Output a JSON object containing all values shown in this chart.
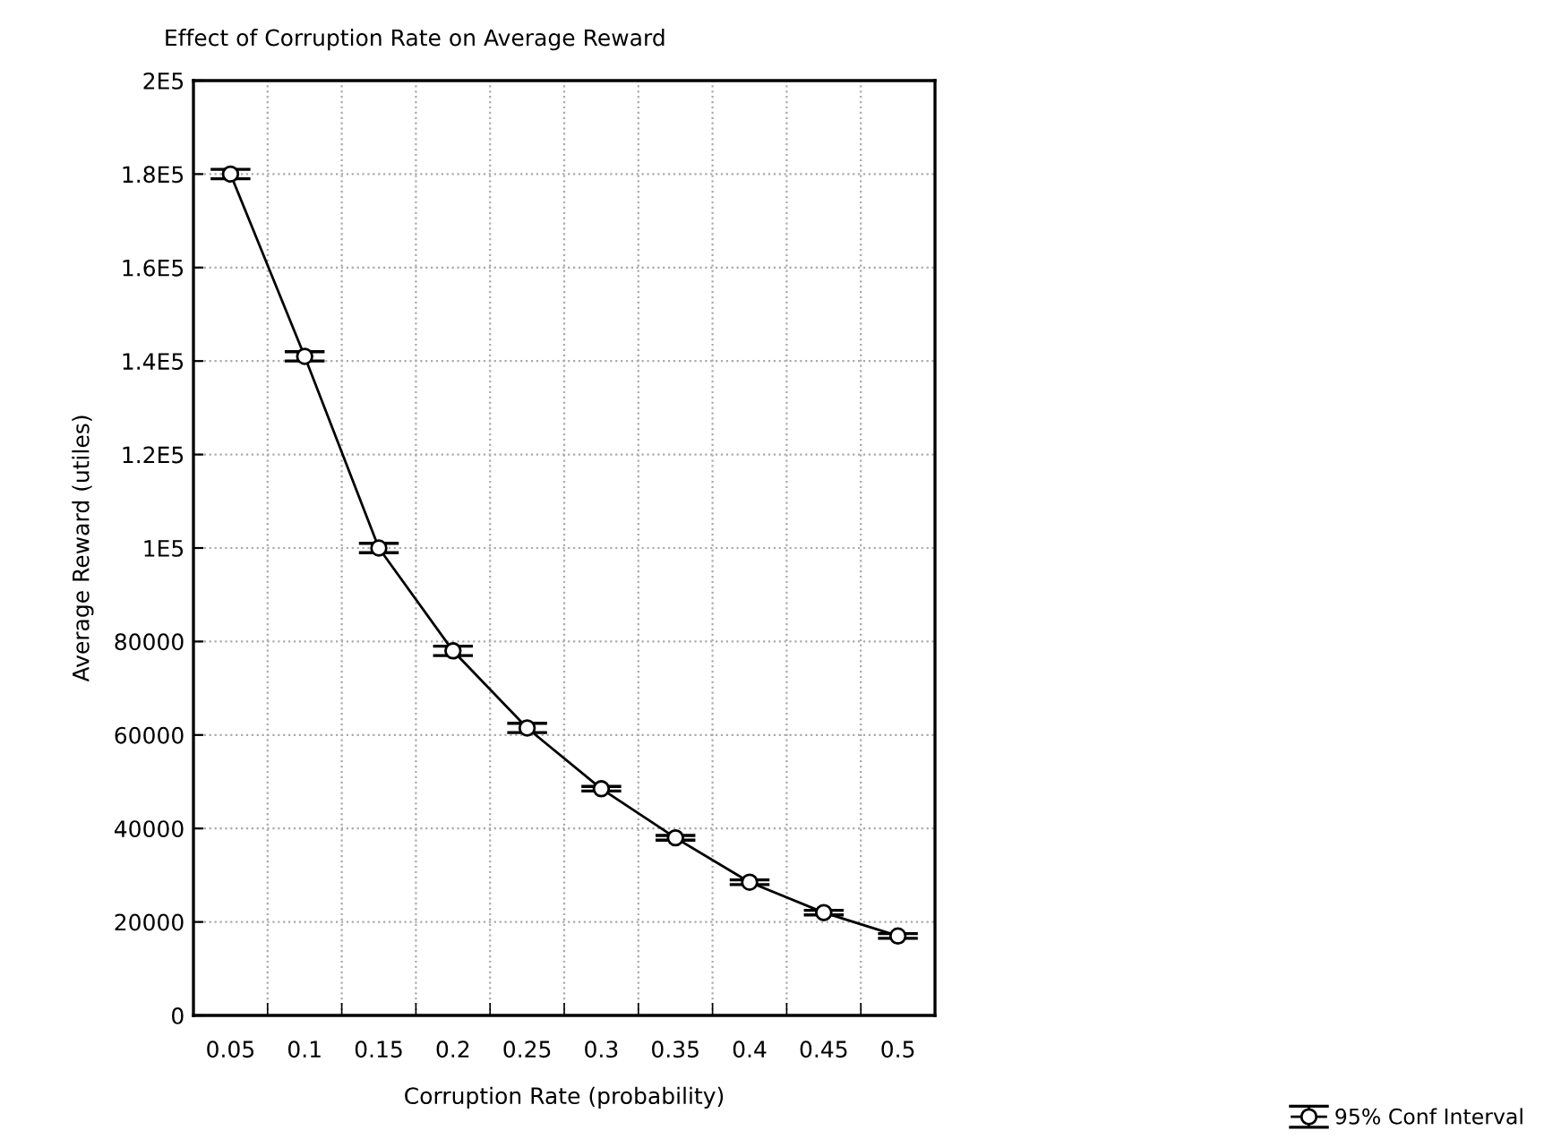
{
  "chart_data": {
    "type": "line",
    "title": "Effect of Corruption Rate on Average Reward",
    "xlabel": "Corruption Rate (probability)",
    "ylabel": "Average Reward (utiles)",
    "categories": [
      "0.05",
      "0.1",
      "0.15",
      "0.2",
      "0.25",
      "0.3",
      "0.35",
      "0.4",
      "0.45",
      "0.5"
    ],
    "series": [
      {
        "name": "95% Conf Interval",
        "color": "#000000",
        "values": [
          180000,
          141000,
          100000,
          78000,
          61500,
          48500,
          38000,
          28500,
          22000,
          17000
        ],
        "errors": [
          1000,
          1000,
          1000,
          1000,
          1000,
          500,
          500,
          500,
          500,
          500
        ]
      }
    ],
    "ylim": [
      0,
      200000
    ],
    "yticks": [
      0,
      20000,
      40000,
      60000,
      80000,
      {
        "value": 100000,
        "label": "1E5"
      },
      {
        "value": 120000,
        "label": "1.2E5"
      },
      {
        "value": 140000,
        "label": "1.4E5"
      },
      {
        "value": 160000,
        "label": "1.6E5"
      },
      {
        "value": 180000,
        "label": "1.8E5"
      },
      {
        "value": 200000,
        "label": "2E5"
      }
    ],
    "grid": true,
    "legend": "bottom right",
    "marker": "circle",
    "line_style": "solid"
  }
}
